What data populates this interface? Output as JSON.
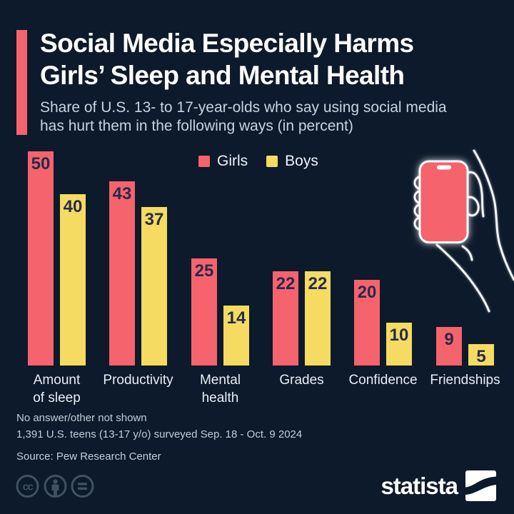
{
  "colors": {
    "background": "#0c1a2b",
    "girls_red": "#f5636c",
    "boys_yellow": "#f5db61",
    "accent_bar": "#f5636c",
    "value_label": "#272b4a",
    "title_text": "#ffffff",
    "subtitle_text": "#c9d3df",
    "category_text": "#e8eef4",
    "footnote_text": "#c3cdd8",
    "license_icon": "#415064",
    "hand_outline": "#f4f7fb"
  },
  "header": {
    "title_lines": [
      "Social Media Especially Harms",
      "Girls’ Sleep and Mental Health"
    ],
    "subtitle_lines": [
      "Share of U.S. 13- to 17-year-olds who say using social media",
      "has hurt them in the following ways (in percent)"
    ]
  },
  "chart_data": {
    "type": "bar",
    "title": "Social Media Especially Harms Girls’ Sleep and Mental Health",
    "subtitle": "Share of U.S. 13- to 17-year-olds who say using social media has hurt them in the following ways (in percent)",
    "unit": "percent",
    "categories": [
      "Amount of sleep",
      "Productivity",
      "Mental health",
      "Grades",
      "Confidence",
      "Friendships"
    ],
    "category_label_lines": [
      [
        "Amount",
        "of sleep"
      ],
      [
        "Productivity"
      ],
      [
        "Mental",
        "health"
      ],
      [
        "Grades"
      ],
      [
        "Confidence"
      ],
      [
        "Friendships"
      ]
    ],
    "series": [
      {
        "name": "Girls",
        "color": "#f5636c",
        "values": [
          50,
          43,
          25,
          22,
          20,
          9
        ]
      },
      {
        "name": "Boys",
        "color": "#f5db61",
        "values": [
          40,
          37,
          14,
          22,
          10,
          5
        ]
      }
    ],
    "ylim": [
      0,
      50
    ],
    "grid": false,
    "legend_position": "top",
    "value_labels": "inside-top",
    "xlabel": "",
    "ylabel": ""
  },
  "footnotes": {
    "line1": "No answer/other not shown",
    "line2": "1,391 U.S. teens (13-17 y/o) surveyed Sep. 18 - Oct. 9 2024",
    "source": "Source: Pew Research Center"
  },
  "branding": {
    "logo_text": "statista",
    "license_icons": [
      "cc-icon",
      "attribution-person-icon",
      "no-derivatives-equals-icon"
    ]
  },
  "illustration": {
    "name": "hand-holding-phone",
    "phone_color": "#f5636c"
  }
}
